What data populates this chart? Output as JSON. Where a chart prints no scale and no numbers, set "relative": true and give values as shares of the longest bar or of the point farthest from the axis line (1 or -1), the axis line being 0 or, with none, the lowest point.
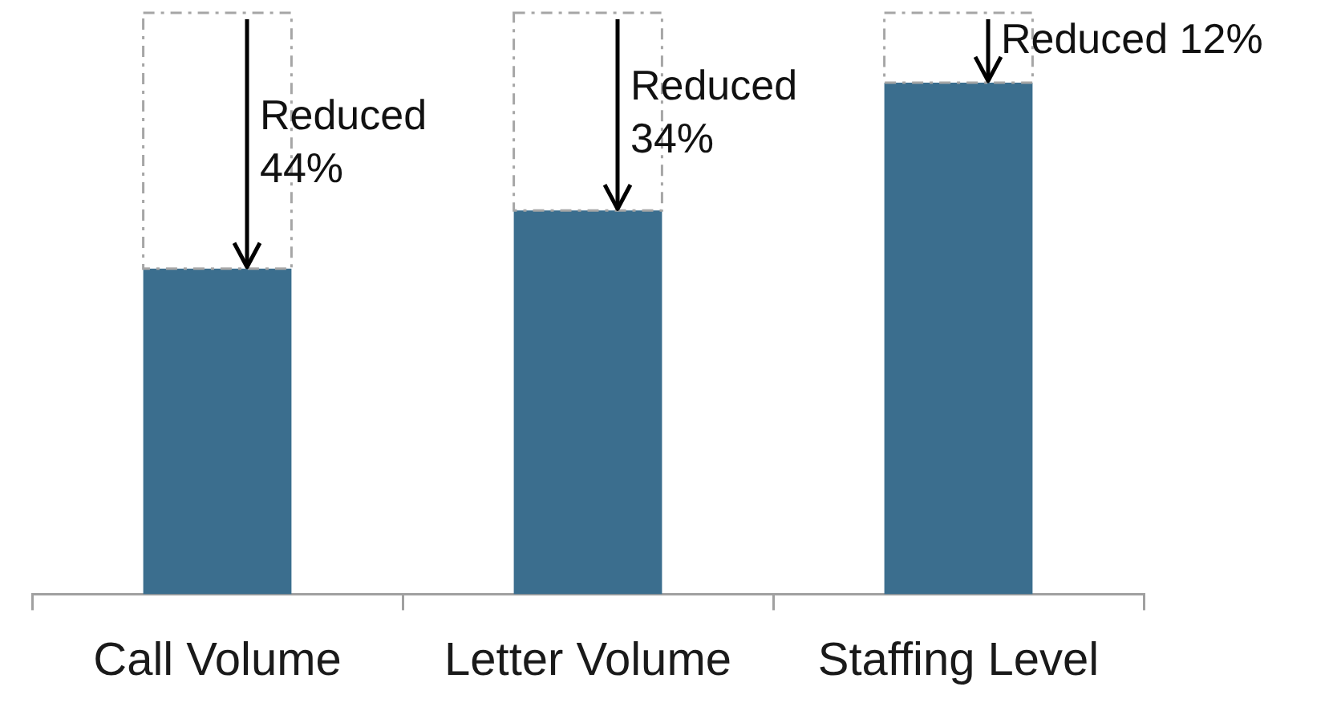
{
  "chart_data": {
    "type": "bar",
    "categories": [
      "Call Volume",
      "Letter Volume",
      "Staffing Level"
    ],
    "series": [
      {
        "color": "#3b6e8e",
        "values": [
          0.56,
          0.66,
          0.88
        ]
      },
      {
        "color": "#a6a6a6",
        "line_style": "dashed",
        "values": [
          0.44,
          0.34,
          0.12
        ]
      }
    ],
    "stacked": true,
    "relative": true,
    "legend": false,
    "grid": false,
    "annotations": [
      {
        "text": "Reduced 44%",
        "x": "Call Volume",
        "y": 0.56
      },
      {
        "text": "Reduced 34%",
        "x": "Letter Volume",
        "y": 0.66
      },
      {
        "text": "Reduced 12%",
        "x": "Staffing Level",
        "y": 0.88
      }
    ]
  }
}
